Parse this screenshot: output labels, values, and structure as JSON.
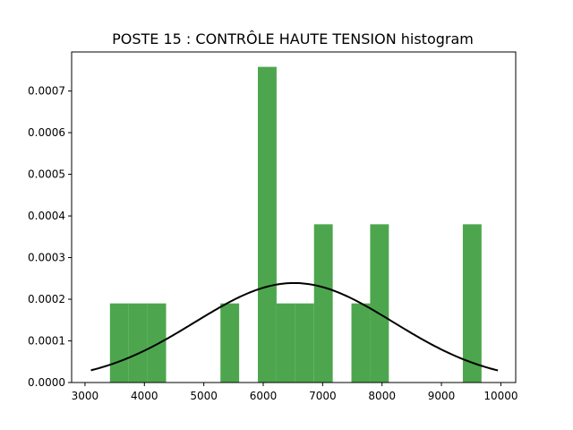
{
  "chart_data": {
    "type": "bar",
    "title": "POSTE 15 : CONTRÔLE HAUTE TENSION histogram",
    "xlabel": "",
    "ylabel": "",
    "xlim": [
      2775,
      10250
    ],
    "ylim": [
      0,
      0.0007938
    ],
    "x_ticks": [
      3000,
      4000,
      5000,
      6000,
      7000,
      8000,
      9000,
      10000
    ],
    "y_ticks": [
      0.0,
      0.0001,
      0.0002,
      0.0003,
      0.0004,
      0.0005,
      0.0006,
      0.0007
    ],
    "x_tick_labels": [
      "3000",
      "4000",
      "5000",
      "6000",
      "7000",
      "8000",
      "9000",
      "10000"
    ],
    "y_tick_labels": [
      "0.0000",
      "0.0001",
      "0.0002",
      "0.0003",
      "0.0004",
      "0.0005",
      "0.0006",
      "0.0007"
    ],
    "bar_color": "#4da64d",
    "bins": [
      {
        "x0": 3420,
        "x1": 3735,
        "density": 0.00019
      },
      {
        "x0": 3735,
        "x1": 4050,
        "density": 0.00019
      },
      {
        "x0": 4050,
        "x1": 4365,
        "density": 0.00019
      },
      {
        "x0": 5280,
        "x1": 5595,
        "density": 0.00019
      },
      {
        "x0": 5910,
        "x1": 6225,
        "density": 0.000758
      },
      {
        "x0": 6225,
        "x1": 6540,
        "density": 0.00019
      },
      {
        "x0": 6540,
        "x1": 6855,
        "density": 0.00019
      },
      {
        "x0": 6855,
        "x1": 7170,
        "density": 0.00038
      },
      {
        "x0": 7485,
        "x1": 7800,
        "density": 0.00019
      },
      {
        "x0": 7800,
        "x1": 8115,
        "density": 0.00038
      },
      {
        "x0": 9360,
        "x1": 9675,
        "density": 0.00038
      }
    ],
    "normal_curve": {
      "color": "#000000",
      "mean": 6520,
      "std": 1670,
      "x_range": [
        3100,
        9950
      ]
    }
  }
}
